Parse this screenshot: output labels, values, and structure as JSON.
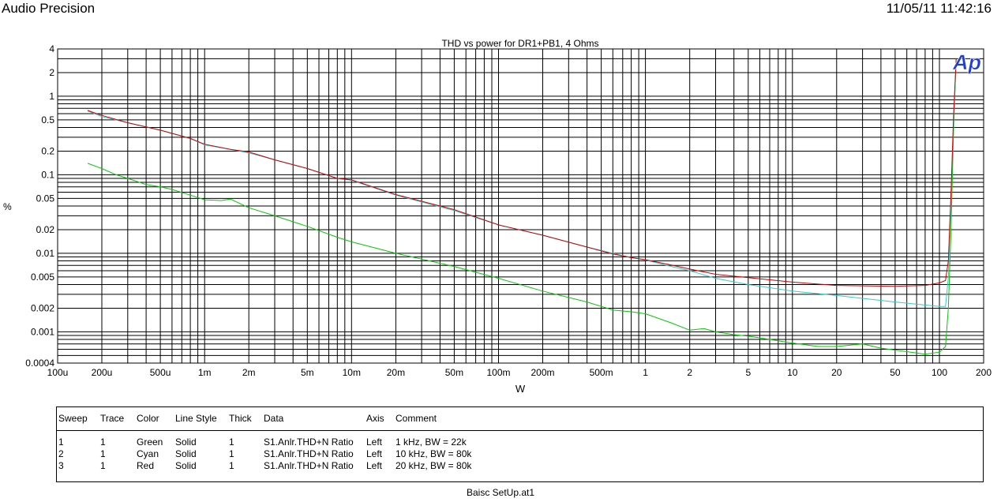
{
  "header": {
    "app_name": "Audio Precision",
    "timestamp": "11/05/11 11:42:16"
  },
  "logo_text": "Ap",
  "chart_data": {
    "type": "line",
    "title": "THD vs power for DR1+PB1, 4 Ohms",
    "xlabel": "W",
    "ylabel": "%",
    "x_scale": "log",
    "y_scale": "log",
    "xlim": [
      0.0001,
      200
    ],
    "ylim": [
      0.0004,
      4
    ],
    "grid": true,
    "x_tick_labels": [
      {
        "value": 0.0001,
        "label": "100u"
      },
      {
        "value": 0.0002,
        "label": "200u"
      },
      {
        "value": 0.0005,
        "label": "500u"
      },
      {
        "value": 0.001,
        "label": "1m"
      },
      {
        "value": 0.002,
        "label": "2m"
      },
      {
        "value": 0.005,
        "label": "5m"
      },
      {
        "value": 0.01,
        "label": "10m"
      },
      {
        "value": 0.02,
        "label": "20m"
      },
      {
        "value": 0.05,
        "label": "50m"
      },
      {
        "value": 0.1,
        "label": "100m"
      },
      {
        "value": 0.2,
        "label": "200m"
      },
      {
        "value": 0.5,
        "label": "500m"
      },
      {
        "value": 1,
        "label": "1"
      },
      {
        "value": 2,
        "label": "2"
      },
      {
        "value": 5,
        "label": "5"
      },
      {
        "value": 10,
        "label": "10"
      },
      {
        "value": 20,
        "label": "20"
      },
      {
        "value": 50,
        "label": "50"
      },
      {
        "value": 100,
        "label": "100"
      },
      {
        "value": 200,
        "label": "200"
      }
    ],
    "y_tick_labels": [
      {
        "value": 4,
        "label": "4"
      },
      {
        "value": 2,
        "label": "2"
      },
      {
        "value": 1,
        "label": "1"
      },
      {
        "value": 0.5,
        "label": "0.5"
      },
      {
        "value": 0.2,
        "label": "0.2"
      },
      {
        "value": 0.1,
        "label": "0.1"
      },
      {
        "value": 0.05,
        "label": "0.05"
      },
      {
        "value": 0.02,
        "label": "0.02"
      },
      {
        "value": 0.01,
        "label": "0.01"
      },
      {
        "value": 0.005,
        "label": "0.005"
      },
      {
        "value": 0.002,
        "label": "0.002"
      },
      {
        "value": 0.001,
        "label": "0.001"
      },
      {
        "value": 0.0004,
        "label": "0.0004"
      }
    ],
    "series": [
      {
        "color": "#00cc00",
        "x": [
          0.00016,
          0.0002,
          0.00025,
          0.0003,
          0.0004,
          0.0005,
          0.0006,
          0.0008,
          0.001,
          0.0013,
          0.0015,
          0.002,
          0.003,
          0.005,
          0.008,
          0.01,
          0.02,
          0.05,
          0.1,
          0.2,
          0.4,
          0.6,
          0.8,
          1,
          1.5,
          2,
          2.5,
          3,
          4,
          5,
          7,
          10,
          15,
          20,
          30,
          40,
          60,
          80,
          100,
          110,
          115,
          120,
          125,
          130
        ],
        "y": [
          0.14,
          0.12,
          0.1,
          0.09,
          0.075,
          0.07,
          0.065,
          0.055,
          0.048,
          0.047,
          0.049,
          0.038,
          0.03,
          0.022,
          0.016,
          0.014,
          0.01,
          0.0068,
          0.0048,
          0.0033,
          0.0024,
          0.0019,
          0.0018,
          0.0017,
          0.0013,
          0.00105,
          0.0011,
          0.001,
          0.00092,
          0.00088,
          0.0008,
          0.00072,
          0.00065,
          0.00065,
          0.0007,
          0.00062,
          0.00056,
          0.00052,
          0.00055,
          0.00065,
          0.002,
          0.02,
          0.4,
          3
        ]
      },
      {
        "color": "#33cccc",
        "x": [
          0.00016,
          0.0002,
          0.0003,
          0.0005,
          0.0008,
          0.001,
          0.0015,
          0.002,
          0.003,
          0.005,
          0.008,
          0.01,
          0.02,
          0.05,
          0.1,
          0.2,
          0.4,
          0.6,
          0.8,
          1,
          1.5,
          2,
          3,
          5,
          10,
          20,
          50,
          100,
          110,
          115,
          120,
          125,
          130
        ],
        "y": [
          0.65,
          0.55,
          0.46,
          0.37,
          0.29,
          0.24,
          0.21,
          0.19,
          0.155,
          0.12,
          0.09,
          0.085,
          0.055,
          0.035,
          0.023,
          0.017,
          0.012,
          0.01,
          0.0088,
          0.0082,
          0.0068,
          0.006,
          0.0048,
          0.004,
          0.0033,
          0.0029,
          0.0024,
          0.0021,
          0.0021,
          0.005,
          0.05,
          0.5,
          2.8
        ]
      },
      {
        "color": "#cc0000",
        "x": [
          0.00016,
          0.0002,
          0.0003,
          0.0005,
          0.0008,
          0.001,
          0.0015,
          0.002,
          0.003,
          0.005,
          0.008,
          0.01,
          0.02,
          0.05,
          0.1,
          0.2,
          0.4,
          0.6,
          0.8,
          1,
          1.5,
          2,
          3,
          5,
          10,
          20,
          50,
          80,
          100,
          110,
          115,
          120,
          125,
          130
        ],
        "y": [
          0.66,
          0.57,
          0.46,
          0.37,
          0.29,
          0.245,
          0.21,
          0.195,
          0.155,
          0.12,
          0.09,
          0.086,
          0.056,
          0.036,
          0.023,
          0.017,
          0.012,
          0.0098,
          0.0088,
          0.0083,
          0.0071,
          0.0063,
          0.0054,
          0.0049,
          0.0043,
          0.0039,
          0.0038,
          0.0039,
          0.0042,
          0.0045,
          0.008,
          0.06,
          0.6,
          3
        ]
      }
    ]
  },
  "legend_table": {
    "headers": [
      "Sweep",
      "Trace",
      "Color",
      "Line Style",
      "Thick",
      "Data",
      "Axis",
      "Comment"
    ],
    "rows": [
      [
        "1",
        "1",
        "Green",
        "Solid",
        "1",
        "S1.Anlr.THD+N Ratio",
        "Left",
        "1 kHz, BW = 22k"
      ],
      [
        "2",
        "1",
        "Cyan",
        "Solid",
        "1",
        "S1.Anlr.THD+N Ratio",
        "Left",
        "10 kHz, BW = 80k"
      ],
      [
        "3",
        "1",
        "Red",
        "Solid",
        "1",
        "S1.Anlr.THD+N Ratio",
        "Left",
        "20 kHz, BW = 80k"
      ]
    ]
  },
  "footer": "Baisc SetUp.at1"
}
